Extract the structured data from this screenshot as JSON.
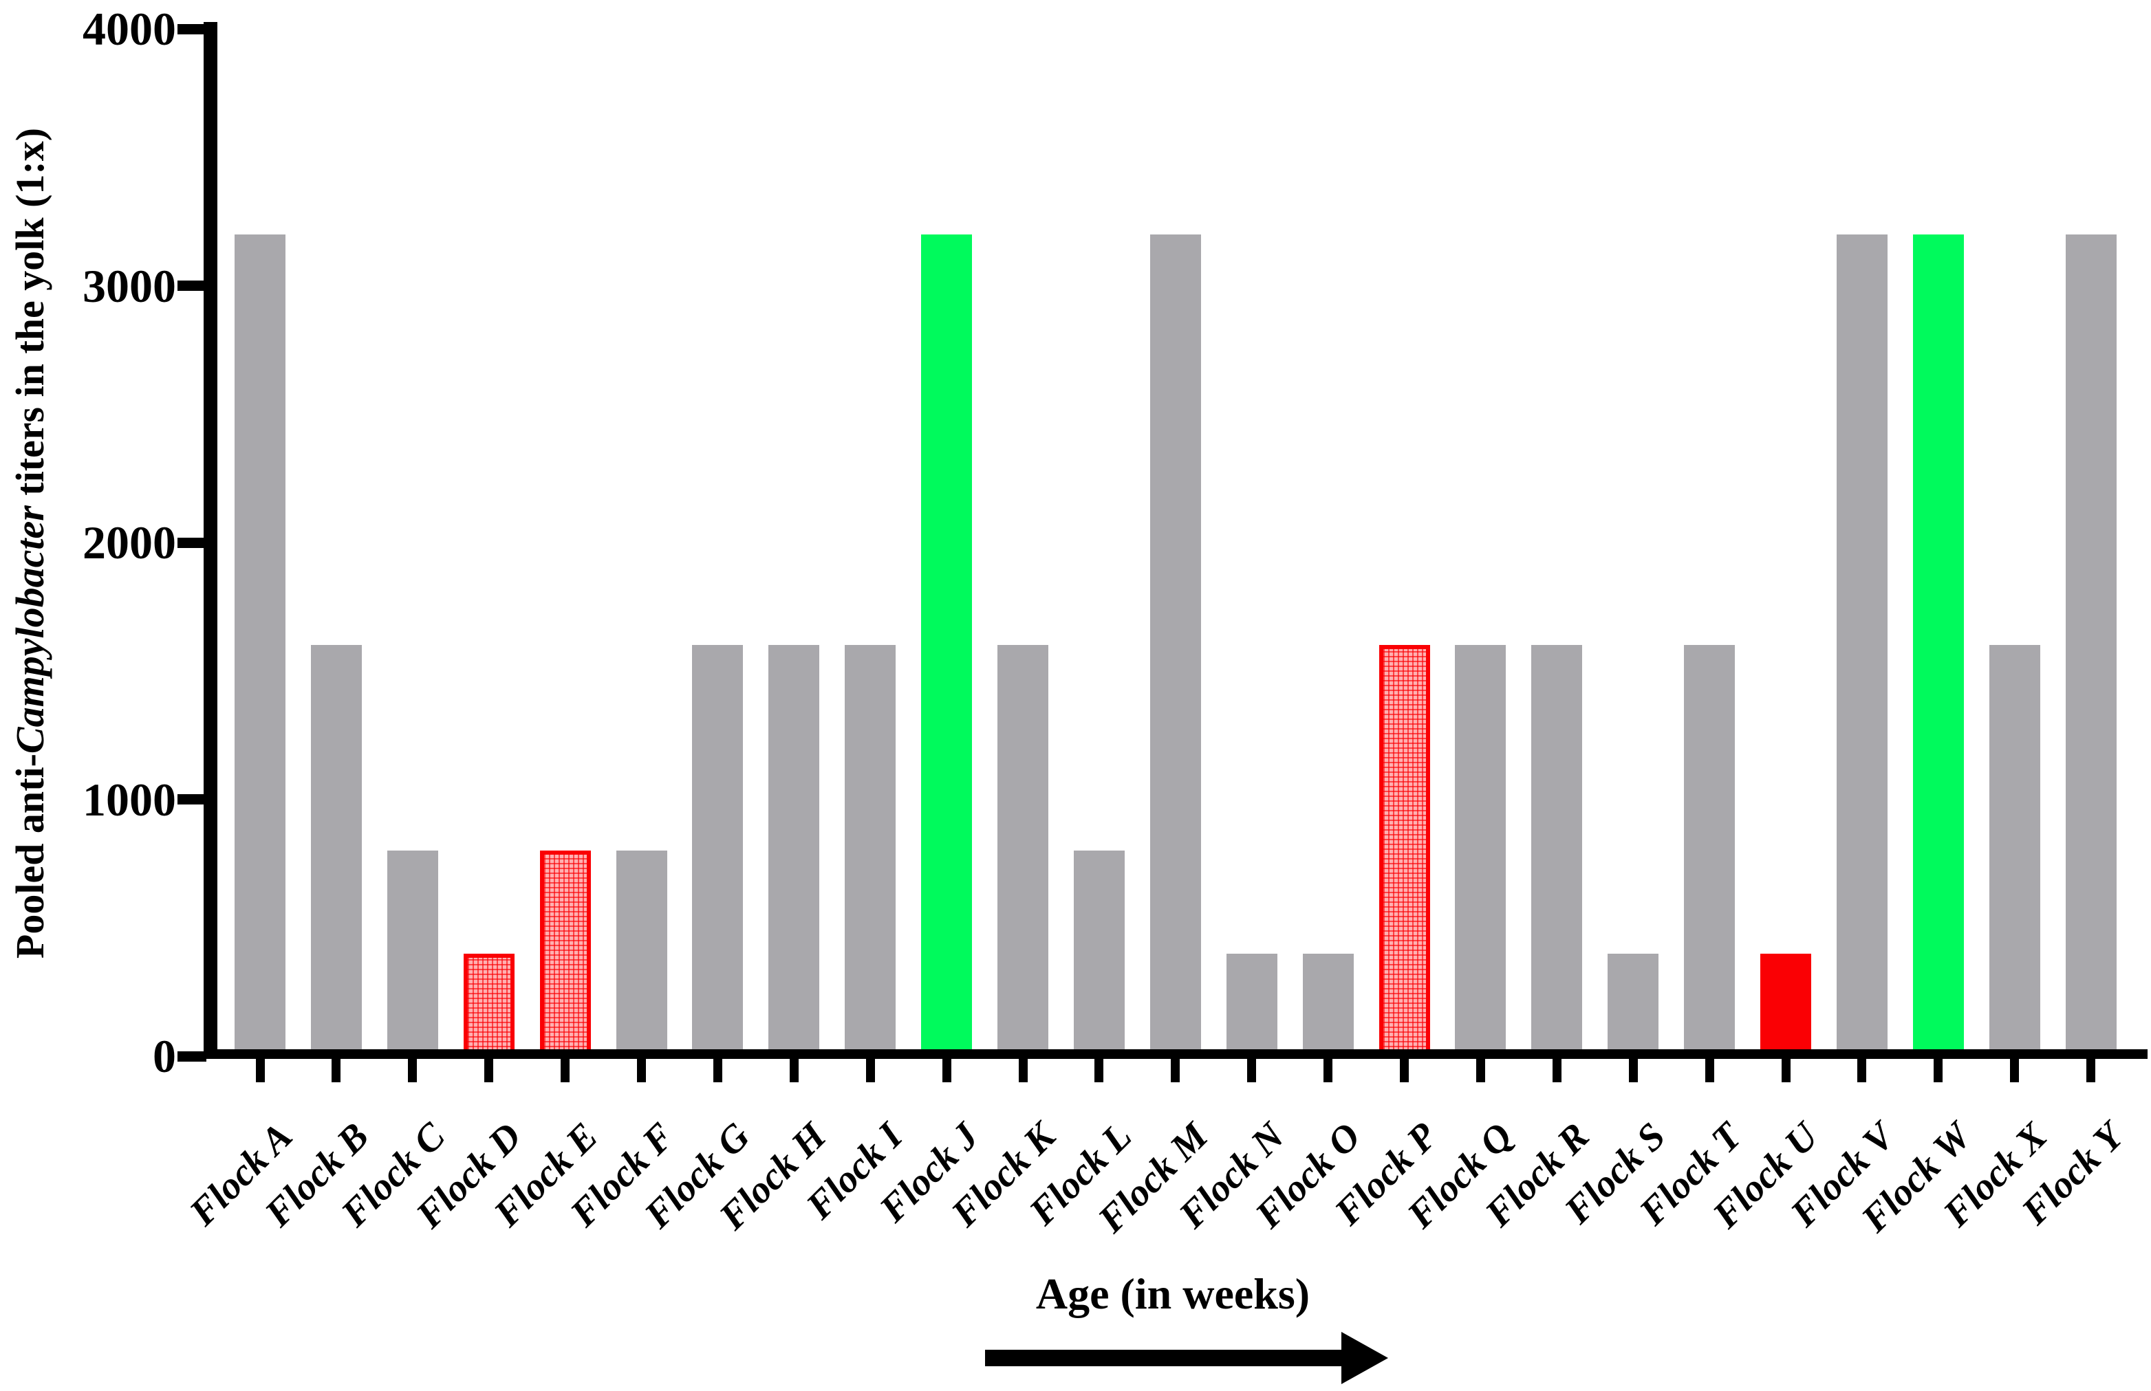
{
  "chart_data": {
    "type": "bar",
    "title": "",
    "ylabel_prefix": "Pooled anti-",
    "ylabel_italic": "Campylobacter",
    "ylabel_suffix": " titers in the yolk (1:x)",
    "xlabel": "Age (in weeks)",
    "ylim": [
      0,
      4000
    ],
    "yticks": [
      "0",
      "1000",
      "2000",
      "3000",
      "4000"
    ],
    "grid": false,
    "legend": "none",
    "categories": [
      "Flock A",
      "Flock B",
      "Flock C",
      "Flock D",
      "Flock E",
      "Flock F",
      "Flock G",
      "Flock H",
      "Flock I",
      "Flock J",
      "Flock K",
      "Flock L",
      "Flock M",
      "Flock N",
      "Flock O",
      "Flock P",
      "Flock Q",
      "Flock R",
      "Flock S",
      "Flock T",
      "Flock U",
      "Flock V",
      "Flock W",
      "Flock X",
      "Flock Y"
    ],
    "values": [
      3200,
      1600,
      800,
      400,
      800,
      800,
      1600,
      1600,
      1600,
      3200,
      1600,
      800,
      3200,
      400,
      400,
      1600,
      1600,
      1600,
      400,
      1600,
      400,
      3200,
      3200,
      1600,
      3200
    ],
    "bar_styles": [
      "gray",
      "gray",
      "gray",
      "red-hatch",
      "red-hatch",
      "gray",
      "gray",
      "gray",
      "gray",
      "green",
      "gray",
      "gray",
      "gray",
      "gray",
      "gray",
      "red-hatch",
      "gray",
      "gray",
      "gray",
      "gray",
      "red-solid",
      "gray",
      "green",
      "gray",
      "gray"
    ],
    "colors": {
      "bar_gray": "#A9A8AC",
      "bar_green": "#00FA5C",
      "bar_red": "#FA0004",
      "bar_red_hatch_bg": "#FFB0B1",
      "axis": "#000000"
    }
  }
}
